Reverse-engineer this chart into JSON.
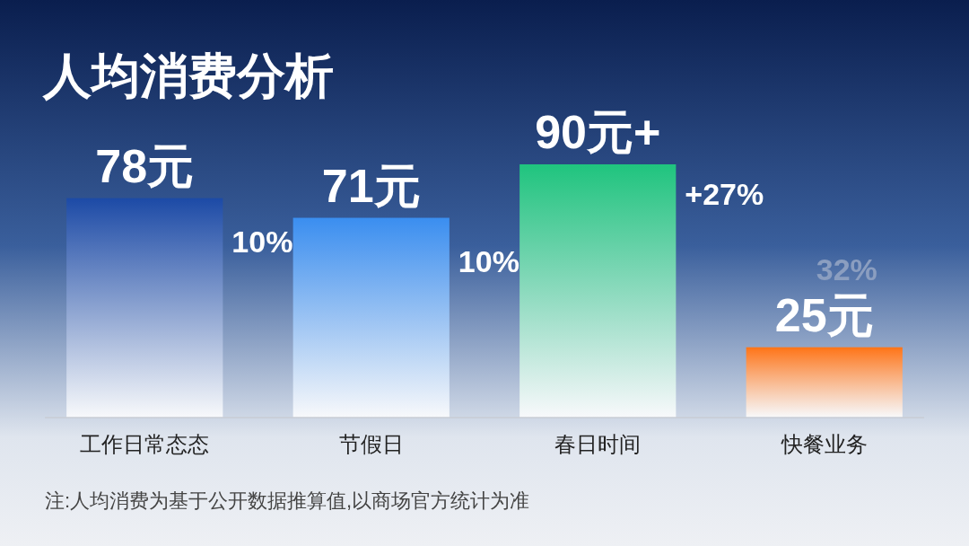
{
  "chart_data": {
    "type": "bar",
    "title": "人均消费分析",
    "categories": [
      "工作日常态态",
      "节假日",
      "春日时间",
      "快餐业务"
    ],
    "values": [
      78,
      71,
      90,
      25
    ],
    "colors": [
      "#1c4aa6",
      "#3a8ef0",
      "#1fc47e",
      "#ff7417"
    ],
    "value_labels": [
      "78元",
      "71元",
      "90元+",
      "25元"
    ],
    "annotations": [
      "10%",
      "10%",
      "+27%",
      "32%",
      "注:人均消费为基于公开数据推算值,以商场官方统计为准"
    ]
  }
}
